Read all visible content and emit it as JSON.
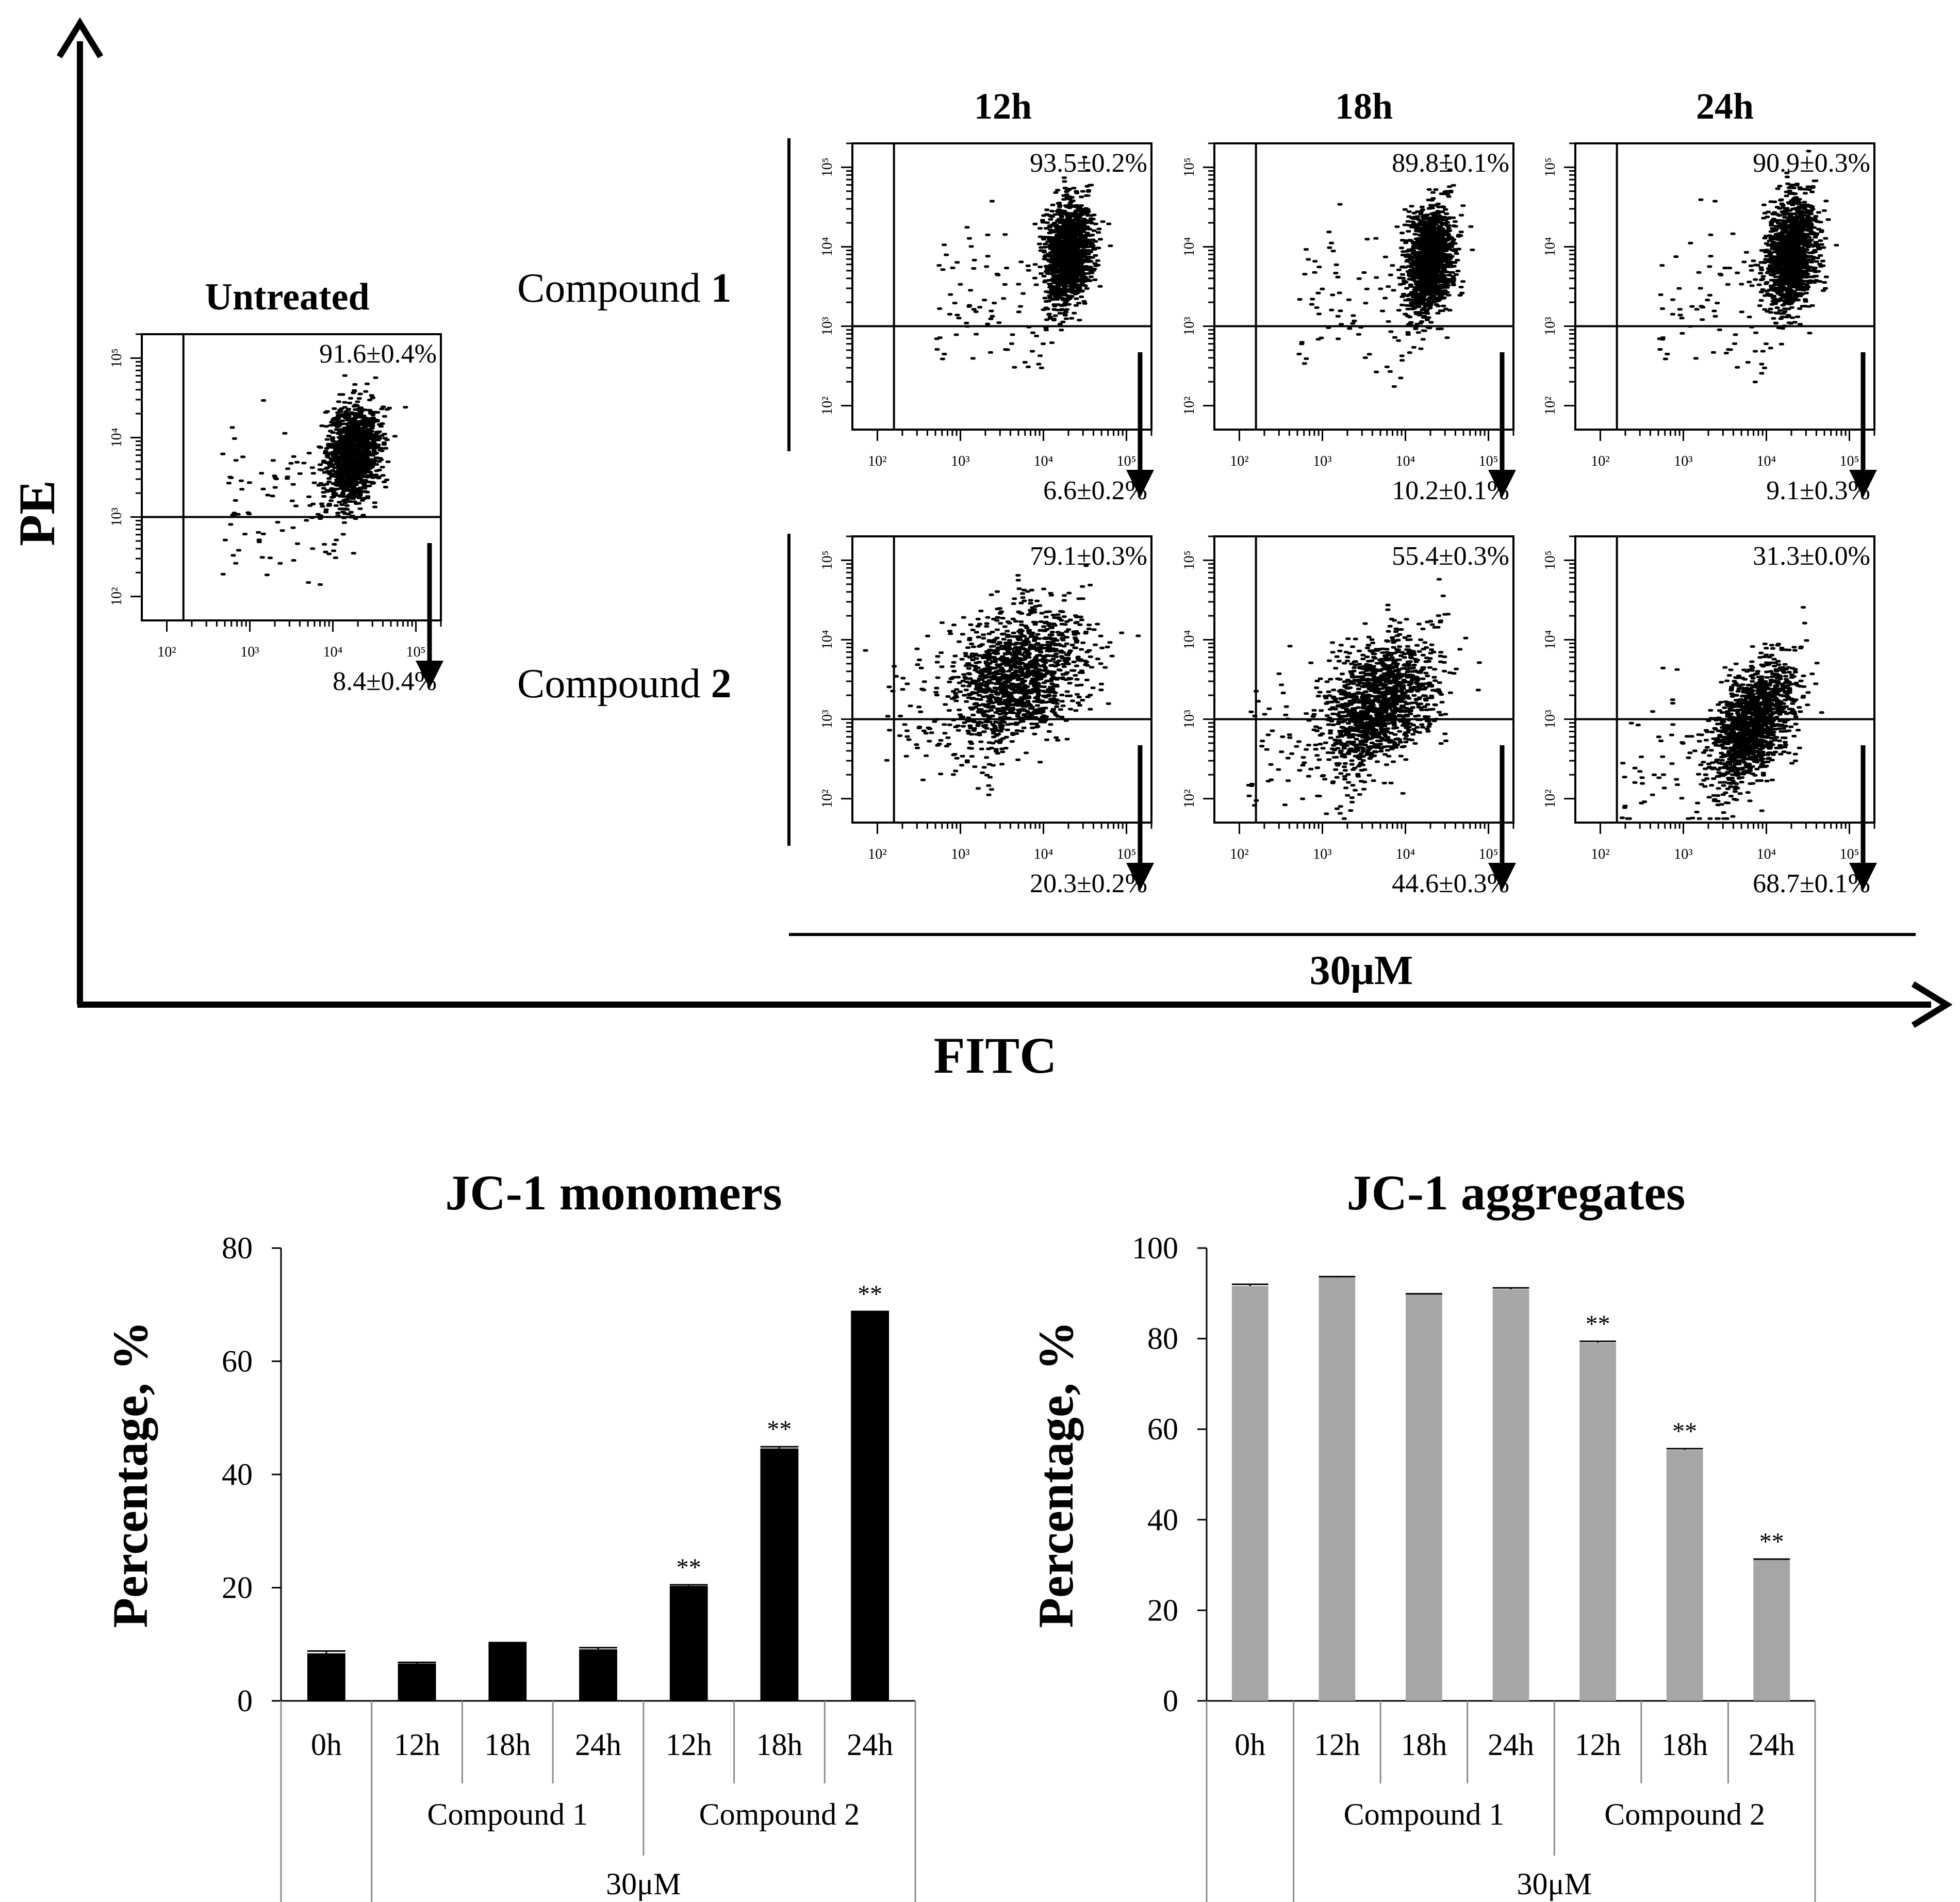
{
  "figure": {
    "top": {
      "y_axis_label": "PE",
      "x_axis_label": "FITC",
      "concentration_label": "30μM",
      "untreated_label": "Untreated",
      "time_headers": [
        "12h",
        "18h",
        "24h"
      ],
      "rows": [
        {
          "label_text": "Compound ",
          "label_num": "1"
        },
        {
          "label_text": "Compound ",
          "label_num": "2"
        }
      ],
      "x_ticks": [
        "10²",
        "10³",
        "10⁴",
        "10⁵"
      ],
      "y_ticks": [
        "10⁵",
        "10⁴",
        "10³",
        "10²"
      ]
    }
  },
  "chart_data": [
    {
      "type": "scatter",
      "panel": "Untreated",
      "axes": {
        "x": "FITC (log)",
        "y": "PE (log)",
        "xlim": [
          50,
          200000
        ],
        "ylim": [
          50,
          200000
        ]
      },
      "upper_right": "91.6±0.4%",
      "lower_right": "8.4±0.4%",
      "high_pct": 91.6,
      "cluster_center": [
        18000,
        6000
      ],
      "spread": [
        0.15,
        0.3
      ],
      "tilt": 0.2
    },
    {
      "type": "scatter",
      "panel": "Compound 1 12h",
      "upper_right": "93.5±0.2%",
      "lower_right": "6.6±0.2%",
      "high_pct": 93.5,
      "cluster_center": [
        20000,
        8000
      ],
      "spread": [
        0.14,
        0.32
      ],
      "tilt": 0.15
    },
    {
      "type": "scatter",
      "panel": "Compound 1 18h",
      "upper_right": "89.8±0.1%",
      "lower_right": "10.2±0.1%",
      "high_pct": 89.8,
      "cluster_center": [
        20000,
        7000
      ],
      "spread": [
        0.14,
        0.34
      ],
      "tilt": 0.15
    },
    {
      "type": "scatter",
      "panel": "Compound 1 24h",
      "upper_right": "90.9±0.3%",
      "lower_right": "9.1±0.3%",
      "high_pct": 90.9,
      "cluster_center": [
        20000,
        8000
      ],
      "spread": [
        0.15,
        0.34
      ],
      "tilt": 0.15
    },
    {
      "type": "scatter",
      "panel": "Compound 2 12h",
      "upper_right": "79.1±0.3%",
      "lower_right": "20.3±0.2%",
      "high_pct": 79.1,
      "cluster_center": [
        5000,
        3500
      ],
      "spread": [
        0.4,
        0.42
      ],
      "tilt": 0.6
    },
    {
      "type": "scatter",
      "panel": "Compound 2 18h",
      "upper_right": "55.4±0.3%",
      "lower_right": "44.6±0.3%",
      "high_pct": 55.4,
      "cluster_center": [
        5000,
        1700
      ],
      "spread": [
        0.32,
        0.4
      ],
      "tilt": 0.7
    },
    {
      "type": "scatter",
      "panel": "Compound 2 24h",
      "upper_right": "31.3±0.0%",
      "lower_right": "68.7±0.1%",
      "high_pct": 31.3,
      "cluster_center": [
        7000,
        900
      ],
      "spread": [
        0.22,
        0.38
      ],
      "tilt": 0.7
    },
    {
      "type": "bar",
      "title": "JC-1 monomers",
      "ylabel": "Percentage, %",
      "ylim": [
        0,
        80
      ],
      "yticks": [
        "0",
        "20",
        "40",
        "60",
        "80"
      ],
      "categories": [
        "0h",
        "12h",
        "18h",
        "24h",
        "12h",
        "18h",
        "24h"
      ],
      "groups": [
        "Compound 1",
        "Compound 2"
      ],
      "concentration": "30μM",
      "values": [
        8.4,
        6.6,
        10.2,
        9.1,
        20.3,
        44.6,
        68.7
      ],
      "errors": [
        0.4,
        0.2,
        0.1,
        0.3,
        0.2,
        0.3,
        0.1
      ],
      "significance": [
        "",
        "",
        "",
        "",
        "**",
        "**",
        "**"
      ],
      "color": "#000000"
    },
    {
      "type": "bar",
      "title": "JC-1 aggregates",
      "ylabel": "Percentage, %",
      "ylim": [
        0,
        100
      ],
      "yticks": [
        "0",
        "20",
        "40",
        "60",
        "80",
        "100"
      ],
      "categories": [
        "0h",
        "12h",
        "18h",
        "24h",
        "12h",
        "18h",
        "24h"
      ],
      "groups": [
        "Compound 1",
        "Compound 2"
      ],
      "concentration": "30μM",
      "values": [
        91.6,
        93.5,
        89.8,
        90.9,
        79.1,
        55.4,
        31.3
      ],
      "errors": [
        0.4,
        0.2,
        0.1,
        0.3,
        0.3,
        0.3,
        0.0
      ],
      "significance": [
        "",
        "",
        "",
        "",
        "**",
        "**",
        "**"
      ],
      "color": "#a6a6a6"
    }
  ]
}
